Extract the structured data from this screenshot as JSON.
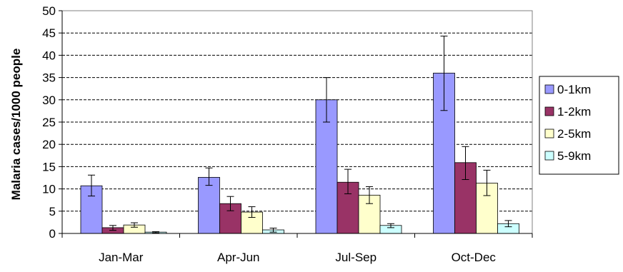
{
  "chart_data": {
    "type": "bar",
    "title": "",
    "xlabel": "",
    "ylabel": "Malaria cases/1000  people",
    "ylim": [
      0,
      50
    ],
    "yticks": [
      0,
      5,
      10,
      15,
      20,
      25,
      30,
      35,
      40,
      45,
      50
    ],
    "grid": "horizontal dashed",
    "legend_position": "right",
    "categories": [
      "Jan-Mar",
      "Apr-Jun",
      "Jul-Sep",
      "Oct-Dec"
    ],
    "series": [
      {
        "name": "0-1km",
        "color": "#9999FF",
        "values": [
          10.7,
          12.6,
          30.0,
          36.0
        ],
        "error": [
          [
            8.4,
            13.1
          ],
          [
            10.8,
            14.7
          ],
          [
            25.0,
            35.0
          ],
          [
            27.6,
            44.3
          ]
        ]
      },
      {
        "name": "1-2km",
        "color": "#993366",
        "values": [
          1.3,
          6.7,
          11.5,
          15.9
        ],
        "error": [
          [
            0.7,
            1.8
          ],
          [
            5.1,
            8.3
          ],
          [
            8.9,
            14.4
          ],
          [
            12.1,
            19.5
          ]
        ]
      },
      {
        "name": "2-5km",
        "color": "#FFFFCC",
        "values": [
          1.9,
          4.8,
          8.6,
          11.3
        ],
        "error": [
          [
            1.4,
            2.4
          ],
          [
            3.6,
            6.0
          ],
          [
            6.7,
            10.5
          ],
          [
            8.5,
            14.2
          ]
        ]
      },
      {
        "name": "5-9km",
        "color": "#CCFFFF",
        "values": [
          0.3,
          0.8,
          1.8,
          2.2
        ],
        "error": [
          [
            0.1,
            0.4
          ],
          [
            0.3,
            1.2
          ],
          [
            1.3,
            2.2
          ],
          [
            1.5,
            2.9
          ]
        ]
      }
    ]
  }
}
